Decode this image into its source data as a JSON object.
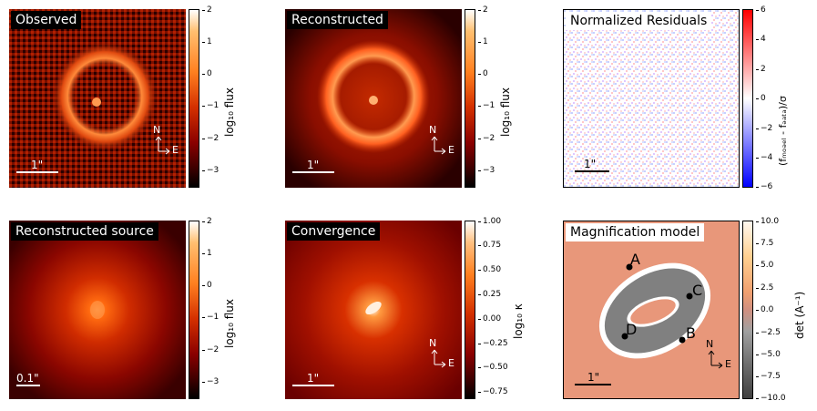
{
  "panels": {
    "observed": {
      "title": "Observed",
      "scale_label": "1\"",
      "cbar_label": "log₁₀ flux",
      "cbar_ticks": [
        "2",
        "1",
        "0",
        "−1",
        "−2",
        "−3"
      ]
    },
    "reconstructed": {
      "title": "Reconstructed",
      "scale_label": "1\"",
      "cbar_label": "log₁₀ flux",
      "cbar_ticks": [
        "2",
        "1",
        "0",
        "−1",
        "−2",
        "−3"
      ]
    },
    "residuals": {
      "title": "Normalized Residuals",
      "scale_label": "1\"",
      "cbar_label": "(fₘₒₔₑₗ - fₔₐₜₐ)/σ",
      "cbar_ticks": [
        "6",
        "4",
        "2",
        "0",
        "−2",
        "−4",
        "−6"
      ]
    },
    "source": {
      "title": "Reconstructed source",
      "scale_label": "0.1\"",
      "cbar_label": "log₁₀ flux",
      "cbar_ticks": [
        "2",
        "1",
        "0",
        "−1",
        "−2",
        "−3"
      ]
    },
    "convergence": {
      "title": "Convergence",
      "scale_label": "1\"",
      "cbar_label": "log₁₀ κ",
      "cbar_ticks": [
        "1.00",
        "0.75",
        "0.50",
        "0.25",
        "0.00",
        "−0.25",
        "−0.50",
        "−0.75"
      ]
    },
    "magnification": {
      "title": "Magnification model",
      "scale_label": "1\"",
      "cbar_label": "det (A⁻¹)",
      "cbar_ticks": [
        "10.0",
        "7.5",
        "5.0",
        "2.5",
        "0.0",
        "−2.5",
        "−5.0",
        "−7.5",
        "−10.0"
      ],
      "image_labels": [
        "A",
        "B",
        "C",
        "D"
      ]
    }
  },
  "compass": {
    "north": "N",
    "east": "E"
  },
  "chart_data": [
    {
      "type": "heatmap",
      "title": "Observed",
      "colorbar_label": "log10 flux",
      "colorbar_range": [
        -3.5,
        2
      ],
      "description_values": {
        "ring_peak": 0.2,
        "background": -3
      }
    },
    {
      "type": "heatmap",
      "title": "Reconstructed",
      "colorbar_label": "log10 flux",
      "colorbar_range": [
        -3.5,
        2
      ]
    },
    {
      "type": "heatmap",
      "title": "Normalized Residuals",
      "colorbar_label": "(f_model - f_data)/sigma",
      "colorbar_range": [
        -6,
        6
      ]
    },
    {
      "type": "heatmap",
      "title": "Reconstructed source",
      "colorbar_label": "log10 flux",
      "colorbar_range": [
        -3.5,
        2
      ]
    },
    {
      "type": "heatmap",
      "title": "Convergence",
      "colorbar_label": "log10 kappa",
      "colorbar_range": [
        -0.8,
        1.0
      ]
    },
    {
      "type": "heatmap",
      "title": "Magnification model",
      "colorbar_label": "det (A^-1)",
      "colorbar_range": [
        -10,
        10
      ],
      "annotations": [
        "A",
        "B",
        "C",
        "D"
      ]
    }
  ],
  "colors": {
    "hot_dark": "#3a0000",
    "hot_mid": "#d43000",
    "hot_light": "#ff9a40",
    "bwr_red": "#ff0000",
    "bwr_blue": "#0000ff"
  }
}
